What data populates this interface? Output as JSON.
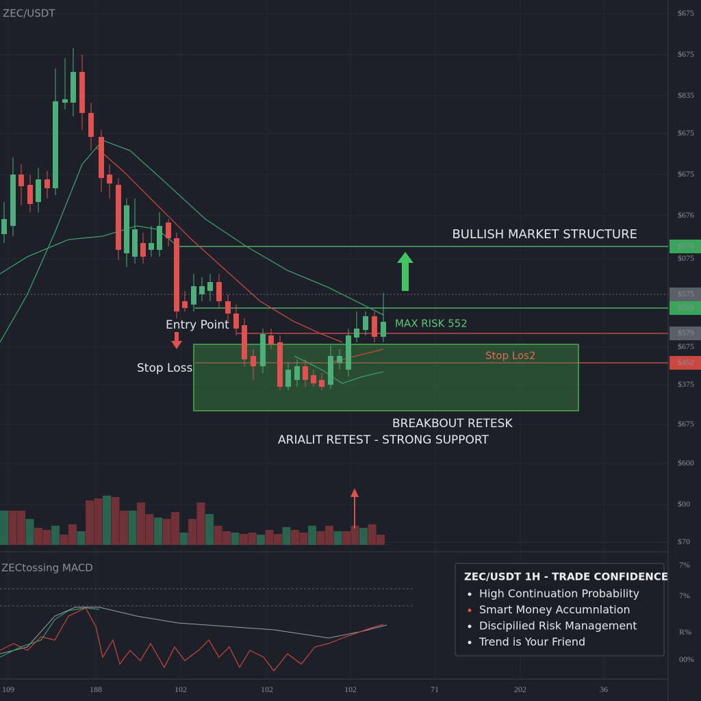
{
  "header": {
    "symbol": "ZEC/USDT"
  },
  "price_axis": [
    "$675",
    "$675",
    "$835",
    "$675",
    "$675",
    "$676",
    "$578",
    "$075",
    "$575",
    "$589",
    "$579",
    "$675",
    "$452",
    "$375",
    "$675",
    "$600",
    "$00",
    "$70"
  ],
  "macd_axis": [
    "7%",
    "7%",
    "R%",
    "00%"
  ],
  "time_axis": [
    "109",
    "188",
    "102",
    "102",
    "102",
    "71",
    "202",
    "36"
  ],
  "annotations": {
    "structure": "BULLISH MARKET STRUCTURE",
    "entry": "Entry Point",
    "stop": "Stop Loss",
    "max_risk": "MAX RISK 552",
    "stop_level": "Stop Los2",
    "breakout": "BREAKBOUT RETESK",
    "retest": "ARIALIT RETEST - STRONG SUPPORT"
  },
  "macd": {
    "label": "ZECtossing MACD"
  },
  "panel": {
    "title": "ZEC/USDT 1H - TRADE CONFIDENCE",
    "items": [
      "High Continuation Probability",
      "Smart Money Accumnlation",
      "Discipilied Risk Management",
      "Trend is Your Friend"
    ]
  }
}
